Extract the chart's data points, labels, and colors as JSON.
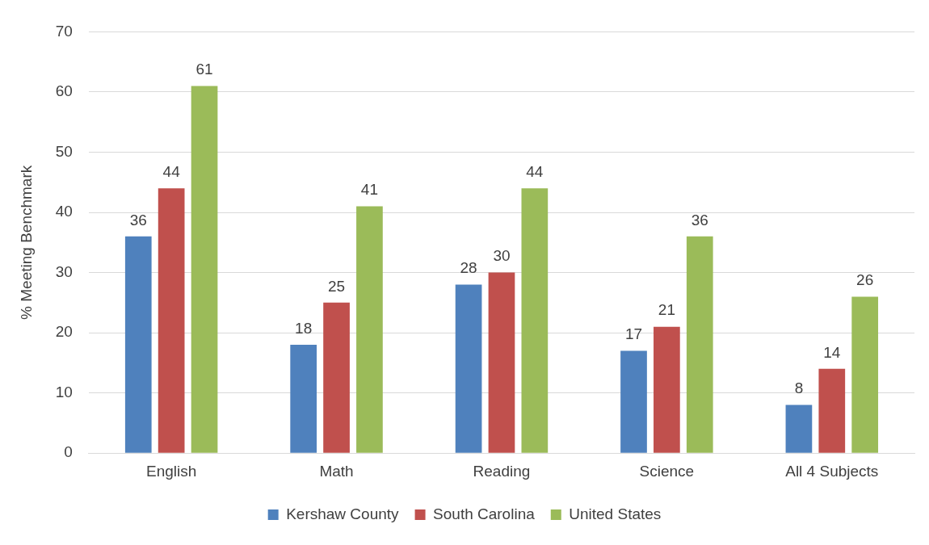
{
  "chart_data": {
    "type": "bar",
    "ylabel": "% Meeting Benchmark",
    "categories": [
      "English",
      "Math",
      "Reading",
      "Science",
      "All 4 Subjects"
    ],
    "series": [
      {
        "name": "Kershaw County",
        "color": "#4f81bd",
        "values": [
          36,
          18,
          28,
          17,
          8
        ]
      },
      {
        "name": "South Carolina",
        "color": "#c0504d",
        "values": [
          44,
          25,
          30,
          21,
          14
        ]
      },
      {
        "name": "United States",
        "color": "#9bbb59",
        "values": [
          61,
          41,
          44,
          36,
          26
        ]
      }
    ],
    "ylim": [
      0,
      70
    ],
    "yticks": [
      0,
      10,
      20,
      30,
      40,
      50,
      60,
      70
    ],
    "grid": "y",
    "legend": "bottom",
    "data_labels": true
  }
}
